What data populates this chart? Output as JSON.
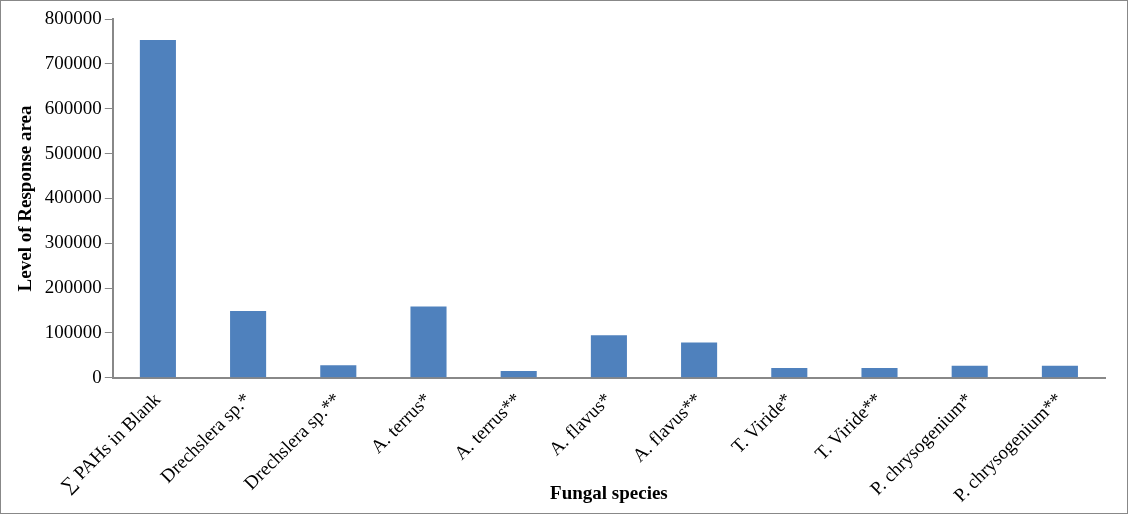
{
  "chart_data": {
    "type": "bar",
    "xlabel": "Fungal species",
    "ylabel": "Level of Response area",
    "categories": [
      "∑ PAHs in Blank",
      "Drechslera sp.*",
      "Drechslera sp.**",
      "A. terrus*",
      "A. terrus**",
      "A. flavus*",
      "A. flavus**",
      "T. Viride*",
      "T. Viride**",
      "P. chrysogenium*",
      "P. chrysogenium**"
    ],
    "values": [
      753000,
      149000,
      28000,
      159000,
      15000,
      95000,
      79000,
      22000,
      22000,
      27000,
      27000
    ],
    "color": "#4f81bd",
    "ylim": [
      0,
      800000
    ],
    "yticks": [
      0,
      100000,
      200000,
      300000,
      400000,
      500000,
      600000,
      700000,
      800000
    ],
    "grid": false,
    "legend": false
  }
}
